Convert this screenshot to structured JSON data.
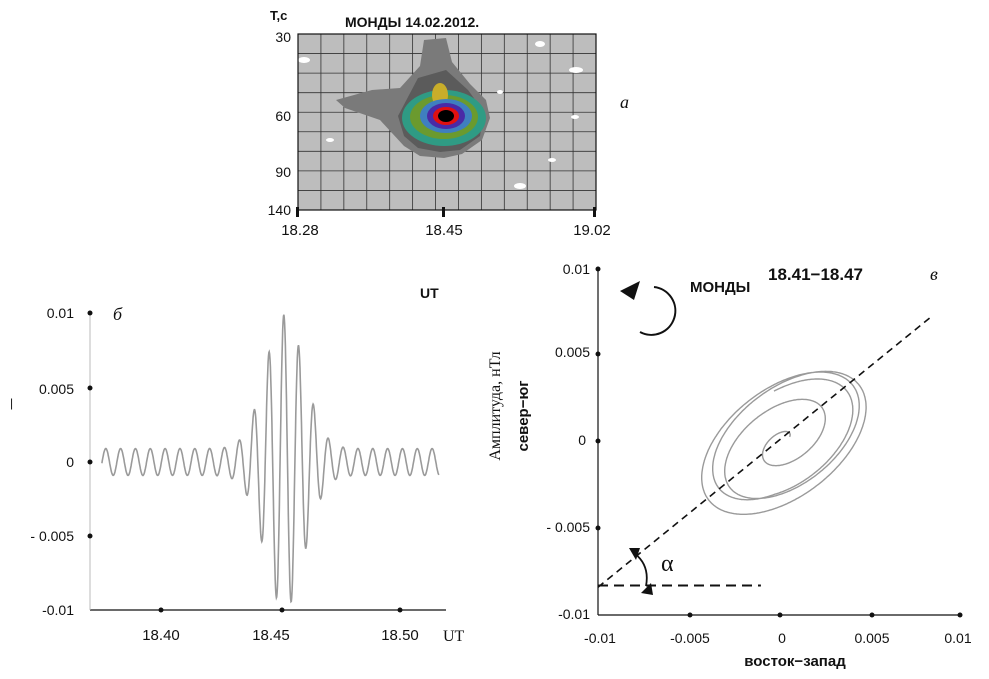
{
  "colors": {
    "background": "#ffffff",
    "ink": "#111111",
    "trace": "#9a9a9a",
    "spectrogram_bg": "#bdbdbd",
    "spectrogram_grid": "#222222"
  },
  "panel_a": {
    "letter": "а",
    "title": "МОНДЫ 14.02.2012.",
    "ylabel": "T,c",
    "y_ticks": [
      "30",
      "60",
      "90",
      "140"
    ],
    "x_ticks": [
      "18.28",
      "18.45",
      "19.02"
    ],
    "palette": [
      "#7a7a7a",
      "#5b5b5b",
      "#2f9b84",
      "#6b9a2e",
      "#c8ad2a",
      "#3f7fbf",
      "#4a2aa6",
      "#e01010",
      "#000000"
    ]
  },
  "panel_b": {
    "letter": "б",
    "corner_label": "UT",
    "xunit": "UT",
    "y_ticks": [
      "0.01",
      "0.005",
      "0",
      "- 0.005",
      "-0.01"
    ],
    "x_ticks": [
      "18.40",
      "18.45",
      "18.50"
    ]
  },
  "panel_v": {
    "letter": "в",
    "title_prefix": "МОНДЫ",
    "title_time": "18.41−18.47",
    "ylabel_prefix": "Амплитуда, нТл",
    "ylabel_axis": "север−юг",
    "xlabel": "восток−запад",
    "alpha": "α",
    "y_ticks": [
      "0.01",
      "0.005",
      "0",
      "- 0.005",
      "-0.01"
    ],
    "x_ticks": [
      "-0.01",
      "-0.005",
      "0",
      "0.005",
      "0.01"
    ]
  },
  "chart_data": [
    {
      "type": "heatmap",
      "title": "МОНДЫ 14.02.2012.",
      "ylabel": "T,c",
      "x_ticks": [
        "18.28",
        "18.45",
        "19.02"
      ],
      "y_ticks": [
        30,
        60,
        90,
        140
      ],
      "peak": {
        "time": "18.45",
        "period_s": 62
      },
      "grid": true
    },
    {
      "type": "line",
      "xlabel": "UT",
      "xlim": [
        18.37,
        18.52
      ],
      "ylim": [
        -0.01,
        0.01
      ],
      "envelope_center": 18.452,
      "envelope_max": 0.009,
      "period_min": 0.00625,
      "background_amplitude": 0.0009,
      "grid": false
    },
    {
      "type": "line",
      "xlabel": "восток−запад",
      "ylabel": "Амплитуда, нТл север−юг",
      "xlim": [
        -0.01,
        0.01
      ],
      "ylim": [
        -0.01,
        0.01
      ],
      "polarization_axis": {
        "from": [
          -0.01,
          -0.0085
        ],
        "to": [
          0.0085,
          0.0073
        ]
      },
      "reference_line_y": -0.0084,
      "rotation": "counterclockwise",
      "grid": false
    }
  ]
}
